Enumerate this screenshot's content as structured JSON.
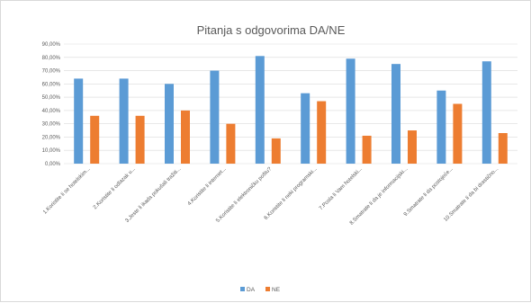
{
  "chart_data": {
    "type": "bar",
    "title": "Pitanja s odgovorima DA/NE",
    "xlabel": "",
    "ylabel": "",
    "ylim": [
      0,
      90
    ],
    "y_ticks": [
      "0,00%",
      "10,00%",
      "20,00%",
      "30,00%",
      "40,00%",
      "50,00%",
      "60,00%",
      "70,00%",
      "80,00%",
      "90,00%"
    ],
    "grid": true,
    "legend_position": "bottom",
    "categories": [
      "1.Koristite li se hotelskim...",
      "2.Koristite li odlazak u...",
      "3.Jeste li ikada pokušali tražiti...",
      "4.Koristite li internet...",
      "5.Koristite li elektroničku poštu?",
      "6.Koristite li neki programski...",
      "7.Posla li Vam hotelski...",
      "8.Smatrate li da je informacijski...",
      "9.Smatrate li da postojeće...",
      "10.Smatrate li da bi drastično..."
    ],
    "series": [
      {
        "name": "DA",
        "color": "#5b9bd5",
        "values": [
          64,
          64,
          60,
          70,
          81,
          53,
          79,
          75,
          55,
          77
        ]
      },
      {
        "name": "NE",
        "color": "#ed7d31",
        "values": [
          36,
          36,
          40,
          30,
          19,
          47,
          21,
          25,
          45,
          23
        ]
      }
    ]
  }
}
